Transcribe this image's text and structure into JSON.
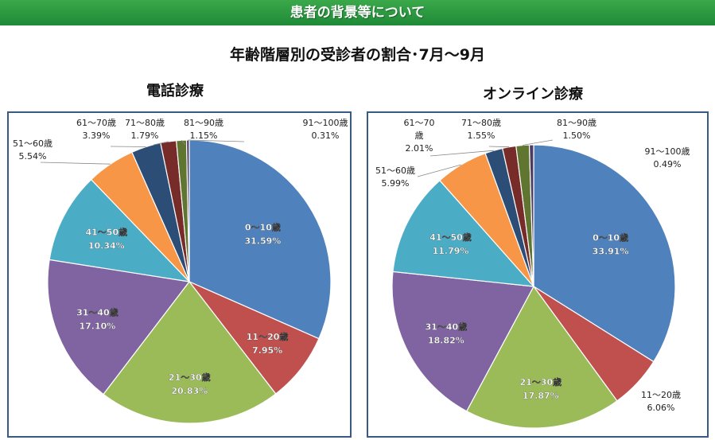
{
  "header": {
    "banner": "患者の背景等について",
    "main_title": "年齢階層別の受診者の割合･7月～9月"
  },
  "colors": {
    "banner": "#2e9a40",
    "panel_border": "#3a5a86",
    "slices": [
      "#4f81bd",
      "#c0504d",
      "#9bbb59",
      "#8064a2",
      "#4bacc6",
      "#f79646",
      "#2c4d75",
      "#772c2a",
      "#5f7530",
      "#4d3b62"
    ]
  },
  "chart_data": [
    {
      "type": "pie",
      "title": "電話診療",
      "categories": [
        "0～10歳",
        "11～20歳",
        "21～30歳",
        "31～40歳",
        "41～50歳",
        "51～60歳",
        "61～70歳",
        "71～80歳",
        "81～90歳",
        "91～100歳"
      ],
      "values": [
        31.59,
        7.95,
        20.83,
        17.1,
        10.34,
        5.54,
        3.39,
        1.79,
        1.15,
        0.31
      ],
      "value_labels": [
        "31.59%",
        "7.95%",
        "20.83%",
        "17.10%",
        "10.34%",
        "5.54%",
        "3.39%",
        "1.79%",
        "1.15%",
        "0.31%"
      ],
      "label_names": [
        "0～10歳",
        "11～20歳",
        "21～30歳",
        "31～40歳",
        "41～50歳",
        "51～60歳",
        "61～70歳",
        "71～80歳",
        "81～90歳",
        "91～100歳"
      ],
      "start_angle_deg": 0,
      "direction": "clockwise",
      "legend": "none"
    },
    {
      "type": "pie",
      "title": "オンライン診療",
      "categories": [
        "0～10歳",
        "11～20歳",
        "21～30歳",
        "31～40歳",
        "41～50歳",
        "51～60歳",
        "61～70歳",
        "71～80歳",
        "81～90歳",
        "91～100歳"
      ],
      "values": [
        33.91,
        6.06,
        17.87,
        18.82,
        11.79,
        5.99,
        2.01,
        1.55,
        1.5,
        0.49
      ],
      "value_labels": [
        "33.91%",
        "6.06%",
        "17.87%",
        "18.82%",
        "11.79%",
        "5.99%",
        "2.01%",
        "1.55%",
        "1.50%",
        "0.49%"
      ],
      "label_names": [
        "0～10歳",
        "11～20歳",
        "21～30歳",
        "31～40歳",
        "41～50歳",
        "51～60歳",
        "61～70\n歳",
        "71～80歳",
        "81～90歳",
        "91～100歳"
      ],
      "start_angle_deg": 0,
      "direction": "clockwise",
      "legend": "none"
    }
  ]
}
